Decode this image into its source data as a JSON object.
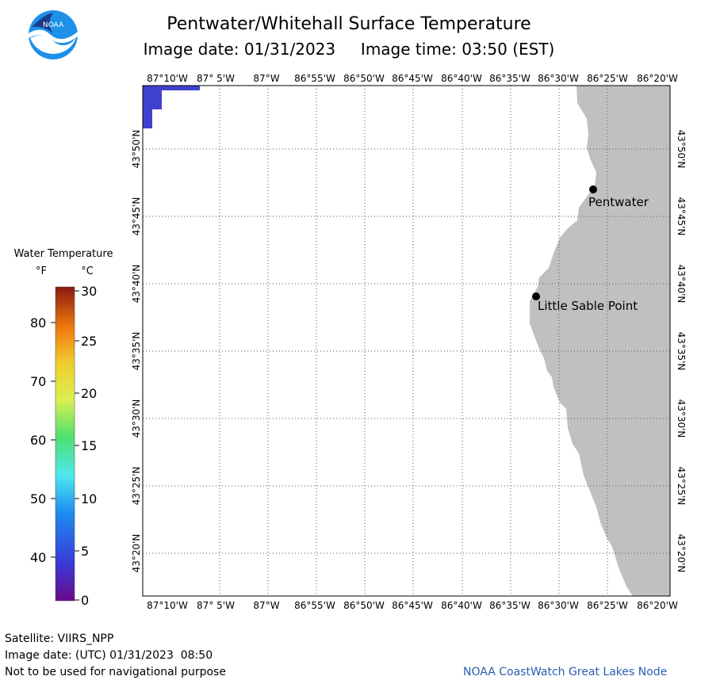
{
  "header": {
    "title": "Pentwater/Whitehall Surface Temperature",
    "date_label": "Image date:",
    "date_value": "01/31/2023",
    "time_label": "Image time:",
    "time_value": "03:50 (EST)"
  },
  "map": {
    "lon_labels": [
      "87°10'W",
      "87° 5'W",
      "87°W",
      "86°55'W",
      "86°50'W",
      "86°45'W",
      "86°40'W",
      "86°35'W",
      "86°30'W",
      "86°25'W",
      "86°20'W"
    ],
    "lat_labels": [
      "43°50'N",
      "43°45'N",
      "43°40'N",
      "43°35'N",
      "43°30'N",
      "43°25'N",
      "43°20'N"
    ],
    "cities": [
      {
        "name": "Pentwater"
      },
      {
        "name": "Little Sable Point"
      }
    ],
    "land_color": "#c0c0c0",
    "cold_water_color": "#4040d0",
    "grid": "dotted"
  },
  "legend": {
    "title": "Water Temperature",
    "unit_f": "°F",
    "unit_c": "°C",
    "f_ticks": [
      "80",
      "70",
      "60",
      "50",
      "40"
    ],
    "c_ticks": [
      "30",
      "25",
      "20",
      "15",
      "10",
      "5",
      "0"
    ]
  },
  "footer": {
    "satellite": "Satellite: VIIRS_NPP",
    "utc": "Image date: (UTC) 01/31/2023  08:50",
    "disclaimer": "Not to be used for navigational purpose",
    "credit": "NOAA CoastWatch Great Lakes Node"
  }
}
